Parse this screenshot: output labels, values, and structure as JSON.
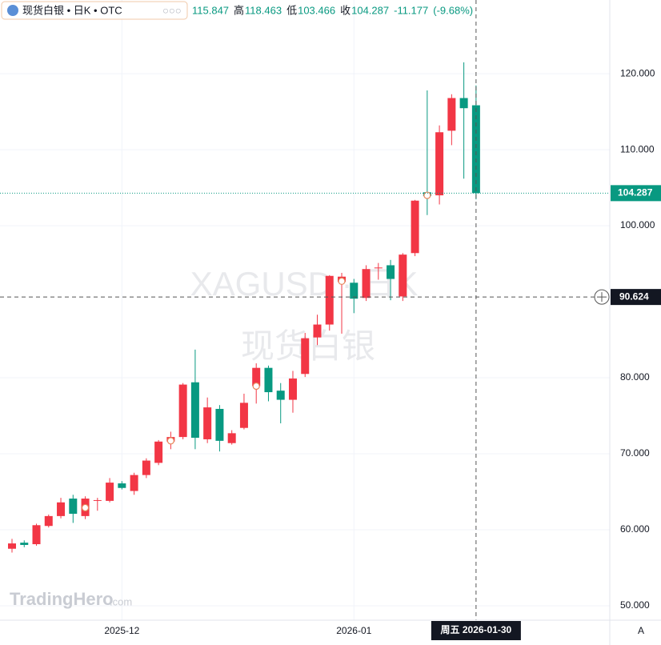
{
  "chart_data": {
    "type": "candlestick",
    "header": {
      "symbol": "现货白银 • 日K • OTC",
      "high_label": "高",
      "low_label": "低",
      "close_label": "收",
      "change": -11.177,
      "change_pct": "(-9.68%)"
    },
    "watermark": [
      "XAGUSD · 日K",
      "现货白银"
    ],
    "logo": "TradingHero",
    "logo_suffix": ".com",
    "scale_button": "A",
    "categories": [
      null,
      null,
      null,
      null,
      null,
      null,
      null,
      null,
      null,
      "2025-12",
      null,
      null,
      null,
      null,
      null,
      null,
      null,
      null,
      null,
      null,
      null,
      null,
      null,
      null,
      null,
      null,
      null,
      null,
      "2026-01",
      null,
      null,
      null,
      null,
      null,
      null,
      null,
      null,
      null,
      null
    ],
    "open": [
      57.5,
      58.3,
      58.1,
      60.5,
      61.8,
      64.1,
      61.8,
      63.8,
      63.8,
      66.1,
      65.1,
      67.2,
      68.8,
      71.6,
      72.2,
      79.4,
      71.9,
      75.9,
      71.4,
      73.4,
      78.9,
      81.3,
      78.3,
      77.1,
      80.5,
      85.3,
      87.0,
      92.6,
      92.5,
      90.5,
      94.4,
      94.8,
      90.7,
      96.4,
      104.4,
      104.0,
      112.5,
      116.8,
      115.847
    ],
    "high": [
      58.8,
      58.6,
      60.8,
      62.0,
      64.2,
      64.6,
      64.4,
      64.2,
      66.8,
      66.4,
      67.5,
      69.4,
      71.8,
      72.9,
      79.3,
      83.7,
      77.4,
      76.4,
      73.1,
      77.9,
      81.9,
      81.6,
      79.3,
      80.9,
      85.9,
      88.3,
      93.5,
      93.8,
      93.0,
      94.8,
      95.1,
      95.5,
      96.4,
      103.4,
      117.8,
      113.2,
      117.3,
      121.5,
      118.463
    ],
    "low": [
      57.0,
      57.7,
      57.9,
      60.3,
      61.5,
      60.9,
      61.4,
      62.5,
      63.6,
      65.3,
      64.6,
      66.8,
      68.5,
      70.6,
      71.9,
      70.6,
      71.4,
      70.3,
      71.2,
      73.2,
      76.6,
      76.9,
      74.0,
      75.4,
      80.1,
      84.3,
      86.2,
      85.8,
      88.5,
      90.1,
      92.9,
      90.2,
      90.1,
      96.0,
      101.4,
      102.8,
      110.6,
      106.2,
      103.466
    ],
    "close": [
      58.2,
      58.0,
      60.6,
      61.8,
      63.6,
      62.1,
      64.1,
      63.9,
      66.2,
      65.5,
      67.2,
      69.1,
      71.6,
      72.2,
      79.1,
      72.1,
      76.1,
      71.7,
      72.7,
      76.7,
      81.3,
      78.1,
      77.1,
      79.9,
      85.2,
      87.0,
      93.4,
      93.3,
      90.4,
      94.3,
      94.5,
      93.0,
      96.2,
      103.3,
      103.9,
      112.3,
      116.8,
      115.464,
      104.287
    ],
    "marker_values": [
      null,
      null,
      null,
      null,
      null,
      null,
      62.9,
      null,
      null,
      null,
      null,
      null,
      null,
      71.7,
      null,
      null,
      null,
      null,
      null,
      null,
      78.9,
      null,
      null,
      null,
      null,
      null,
      null,
      92.7,
      null,
      null,
      null,
      null,
      null,
      null,
      104.0,
      null,
      null,
      null,
      null
    ],
    "up_color": "#f23645",
    "down_color": "#089981",
    "marker_color": "#e8865a",
    "ylim": [
      48.1,
      129.7
    ],
    "yticks": [
      {
        "value": 50,
        "label": "50.000"
      },
      {
        "value": 60,
        "label": "60.000"
      },
      {
        "value": 70,
        "label": "70.000"
      },
      {
        "value": 80,
        "label": "80.000"
      },
      {
        "value": 100,
        "label": "100.000"
      },
      {
        "value": 110,
        "label": "110.000"
      },
      {
        "value": 120,
        "label": "120.000"
      }
    ],
    "grid": true,
    "crosshair": {
      "price": 90.624,
      "date_label": "周五 2026-01-30"
    }
  }
}
